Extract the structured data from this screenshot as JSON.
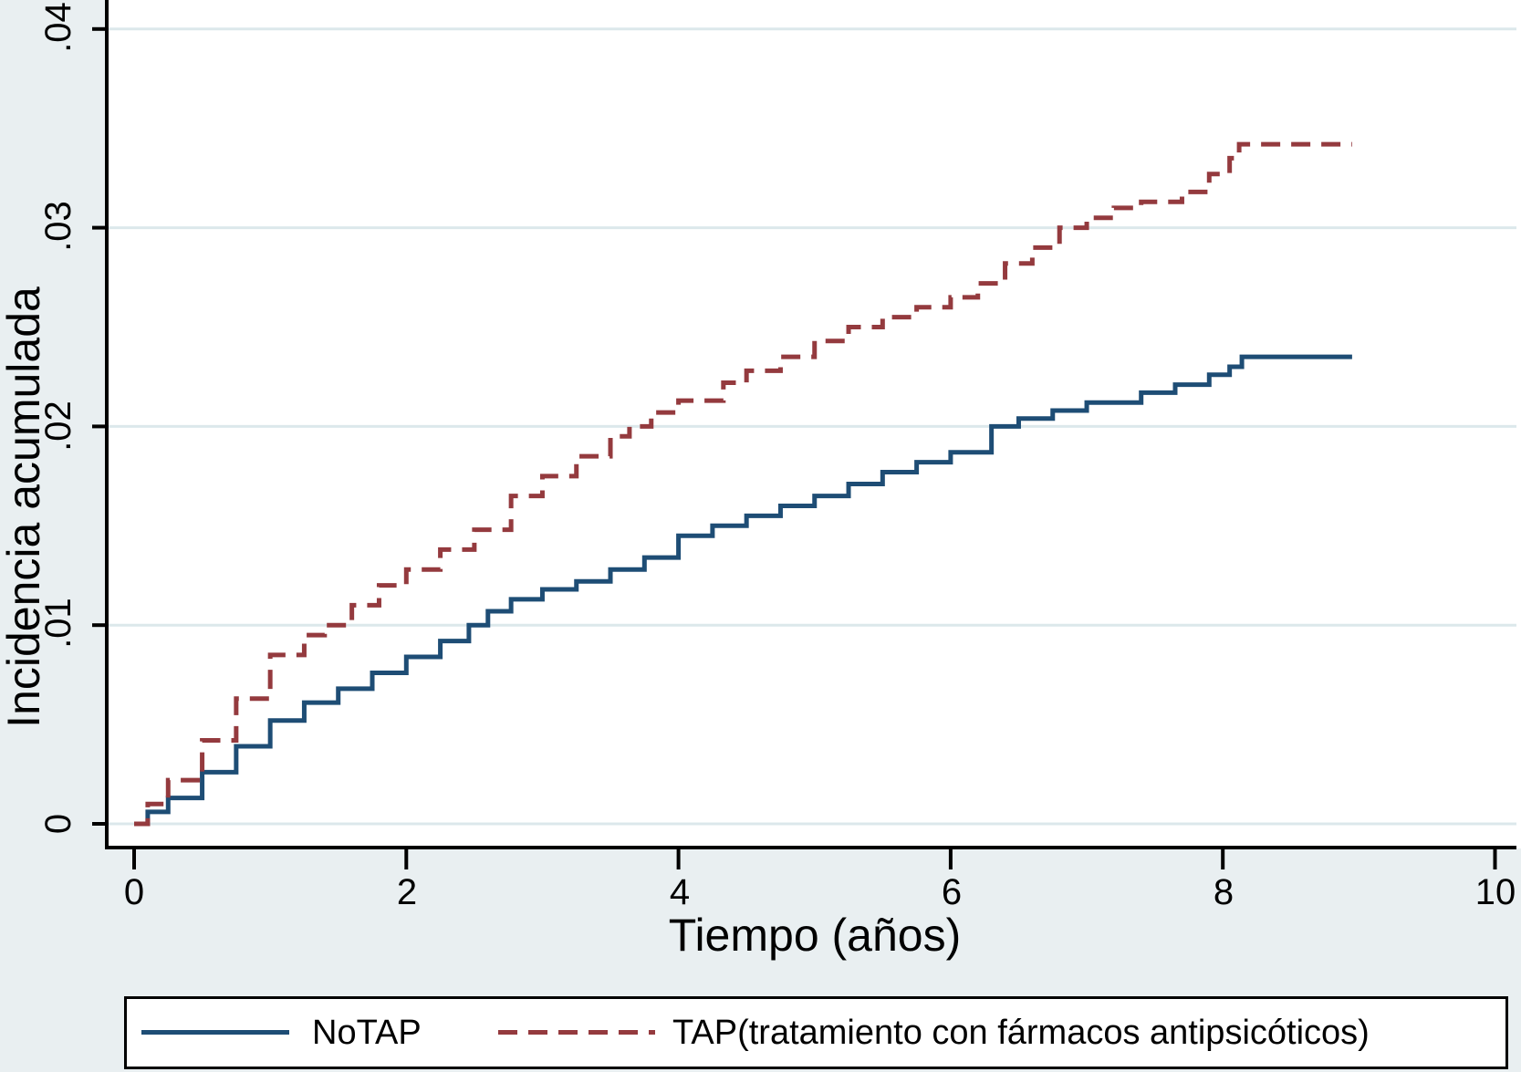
{
  "colors": {
    "background": "#e9eff1",
    "plot_background": "#ffffff",
    "grid": "#dce8eb",
    "axis": "#000000",
    "notap_line": "#1e4d75",
    "tap_line": "#943a3e"
  },
  "axes": {
    "x_title": "Tiempo (años)",
    "y_title": "Incidencia acumulada"
  },
  "chart_data": {
    "type": "line",
    "step": "after",
    "xlabel": "Tiempo (años)",
    "ylabel": "Incidencia acumulada",
    "xlim": [
      0,
      10
    ],
    "ylim": [
      0,
      0.04
    ],
    "grid": true,
    "legend_position": "bottom",
    "x_ticks": [
      "0",
      "2",
      "4",
      "6",
      "8",
      "10"
    ],
    "x_tick_values": [
      0,
      2,
      4,
      6,
      8,
      10
    ],
    "y_ticks": [
      "0",
      ".01",
      ".02",
      ".03",
      ".04"
    ],
    "y_tick_values": [
      0,
      0.01,
      0.02,
      0.03,
      0.04
    ],
    "series": [
      {
        "name": "NoTAP",
        "color": "#1e4d75",
        "dash": "solid",
        "points": [
          [
            0,
            0
          ],
          [
            0.1,
            0.0006
          ],
          [
            0.25,
            0.0013
          ],
          [
            0.5,
            0.0026
          ],
          [
            0.75,
            0.0039
          ],
          [
            1.0,
            0.0052
          ],
          [
            1.25,
            0.0061
          ],
          [
            1.5,
            0.0068
          ],
          [
            1.75,
            0.0076
          ],
          [
            2.0,
            0.0084
          ],
          [
            2.25,
            0.0092
          ],
          [
            2.46,
            0.01
          ],
          [
            2.6,
            0.0107
          ],
          [
            2.77,
            0.0113
          ],
          [
            3.0,
            0.0118
          ],
          [
            3.25,
            0.0122
          ],
          [
            3.5,
            0.0128
          ],
          [
            3.75,
            0.0134
          ],
          [
            4.0,
            0.0145
          ],
          [
            4.25,
            0.015
          ],
          [
            4.5,
            0.0155
          ],
          [
            4.75,
            0.016
          ],
          [
            5.0,
            0.0165
          ],
          [
            5.25,
            0.0171
          ],
          [
            5.5,
            0.0177
          ],
          [
            5.75,
            0.0182
          ],
          [
            6.0,
            0.0187
          ],
          [
            6.3,
            0.02
          ],
          [
            6.5,
            0.0204
          ],
          [
            6.75,
            0.0208
          ],
          [
            7.0,
            0.0212
          ],
          [
            7.4,
            0.0217
          ],
          [
            7.65,
            0.0221
          ],
          [
            7.9,
            0.0226
          ],
          [
            8.05,
            0.023
          ],
          [
            8.14,
            0.0235
          ],
          [
            8.95,
            0.0235
          ]
        ]
      },
      {
        "name": "TAP(tratamiento con fármacos antipsicóticos)",
        "color": "#943a3e",
        "dash": "dashed",
        "points": [
          [
            0,
            0
          ],
          [
            0.1,
            0.001
          ],
          [
            0.25,
            0.0022
          ],
          [
            0.5,
            0.0042
          ],
          [
            0.75,
            0.0063
          ],
          [
            1.0,
            0.0085
          ],
          [
            1.25,
            0.0095
          ],
          [
            1.4,
            0.01
          ],
          [
            1.6,
            0.011
          ],
          [
            1.8,
            0.012
          ],
          [
            2.0,
            0.0128
          ],
          [
            2.25,
            0.0138
          ],
          [
            2.5,
            0.0148
          ],
          [
            2.77,
            0.0165
          ],
          [
            3.0,
            0.0175
          ],
          [
            3.25,
            0.0185
          ],
          [
            3.5,
            0.0195
          ],
          [
            3.64,
            0.02
          ],
          [
            3.8,
            0.0207
          ],
          [
            4.0,
            0.0213
          ],
          [
            4.33,
            0.0222
          ],
          [
            4.5,
            0.0228
          ],
          [
            4.75,
            0.0235
          ],
          [
            5.0,
            0.0243
          ],
          [
            5.25,
            0.025
          ],
          [
            5.5,
            0.0255
          ],
          [
            5.75,
            0.026
          ],
          [
            6.0,
            0.0265
          ],
          [
            6.2,
            0.0272
          ],
          [
            6.4,
            0.0282
          ],
          [
            6.6,
            0.029
          ],
          [
            6.8,
            0.03
          ],
          [
            7.0,
            0.0305
          ],
          [
            7.2,
            0.031
          ],
          [
            7.4,
            0.0313
          ],
          [
            7.7,
            0.0318
          ],
          [
            7.9,
            0.0327
          ],
          [
            8.05,
            0.0335
          ],
          [
            8.12,
            0.0342
          ],
          [
            8.95,
            0.0342
          ]
        ]
      }
    ]
  },
  "legend": {
    "items": [
      {
        "label": "NoTAP"
      },
      {
        "label": "TAP(tratamiento con fármacos antipsicóticos)"
      }
    ]
  }
}
